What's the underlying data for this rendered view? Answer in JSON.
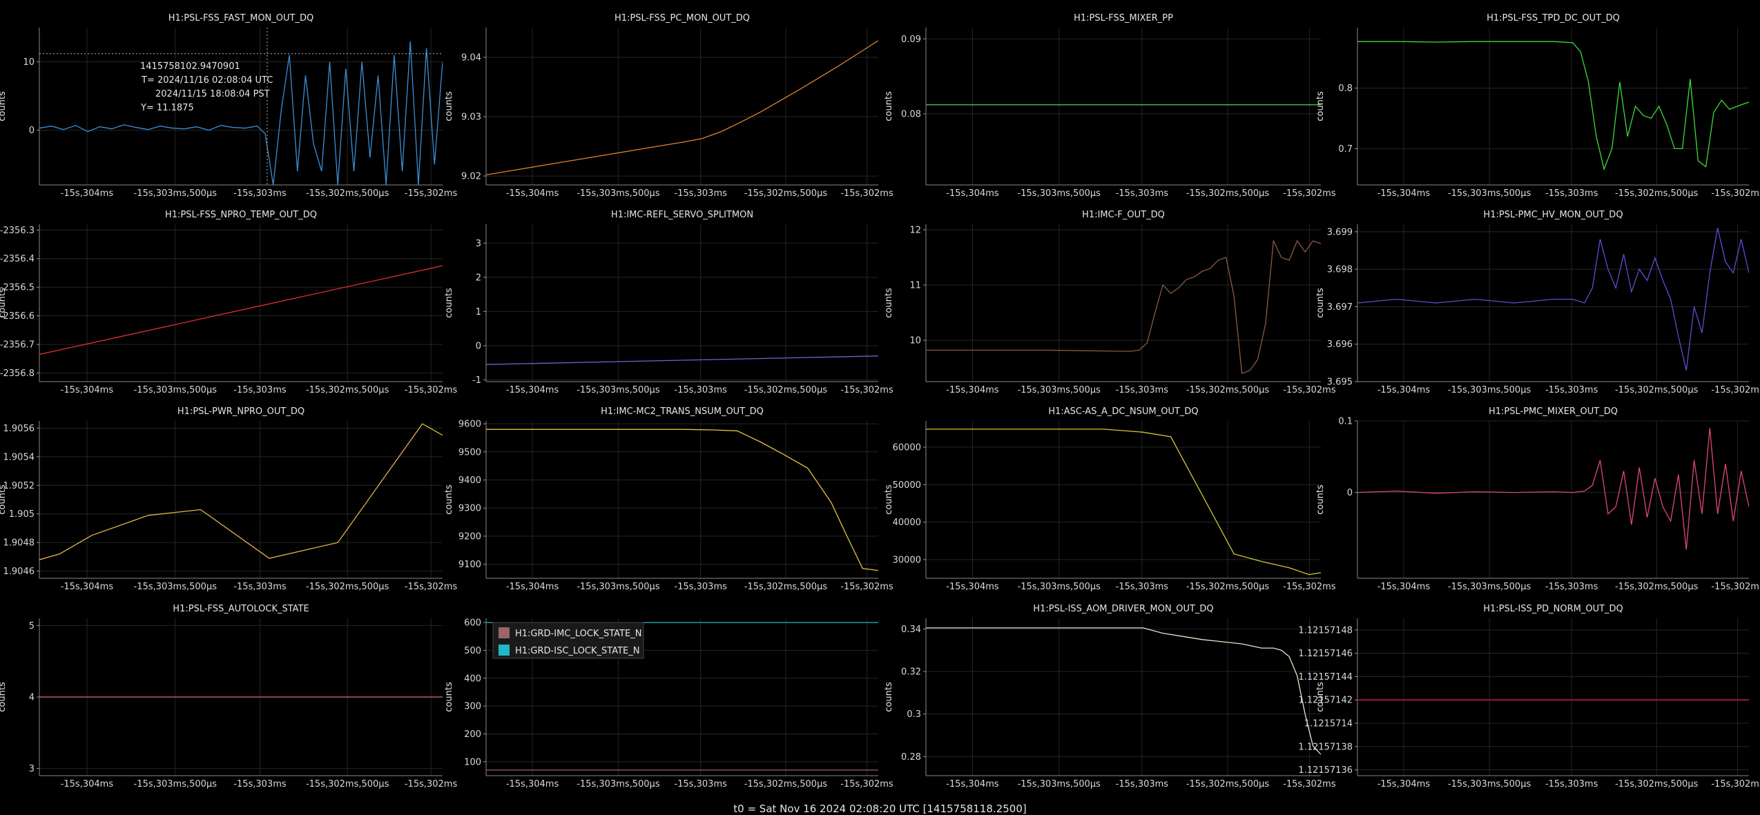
{
  "footer": "t0 = Sat Nov 16 2024 02:08:20 UTC [1415758118.2500]",
  "x_ticks": [
    "-15s,304ms",
    "-15s,303ms,500μs",
    "-15s,303ms",
    "-15s,302ms,500μs",
    "-15s,302ms"
  ],
  "chart_data": [
    {
      "type": "line",
      "title": "H1:PSL-FSS_FAST_MON_OUT_DQ",
      "ylabel": "counts",
      "color": "#3d8fd6",
      "ylim": [
        -8,
        15
      ],
      "yticks": [
        {
          "v": 0,
          "t": "0"
        },
        {
          "v": 10,
          "t": "10"
        }
      ],
      "xrange": [
        0,
        1
      ],
      "x": [
        0,
        0.03,
        0.06,
        0.09,
        0.12,
        0.15,
        0.18,
        0.21,
        0.24,
        0.27,
        0.3,
        0.33,
        0.36,
        0.39,
        0.42,
        0.45,
        0.48,
        0.51,
        0.54,
        0.56,
        0.58,
        0.6,
        0.62,
        0.64,
        0.66,
        0.68,
        0.7,
        0.72,
        0.74,
        0.76,
        0.78,
        0.8,
        0.82,
        0.84,
        0.86,
        0.88,
        0.9,
        0.92,
        0.94,
        0.96,
        0.98,
        1.0
      ],
      "values": [
        0.3,
        0.6,
        0.1,
        0.7,
        -0.2,
        0.5,
        0.2,
        0.8,
        0.4,
        0.1,
        0.6,
        0.3,
        0.2,
        0.5,
        0.0,
        0.7,
        0.4,
        0.3,
        0.6,
        -0.5,
        -8,
        3,
        11,
        -6,
        8,
        -2,
        -6,
        10,
        -8,
        9,
        -6,
        10,
        -4,
        8,
        -8,
        11,
        -6,
        13,
        -8,
        12,
        -5,
        10
      ],
      "crosshair": {
        "x": 0.565,
        "y": 11.1875
      },
      "tooltip": [
        "1415758102.9470901",
        "T= 2024/11/16 02:08:04 UTC",
        "2024/11/15 18:08:04 PST",
        "Y= 11.1875"
      ]
    },
    {
      "type": "line",
      "title": "H1:PSL-FSS_PC_MON_OUT_DQ",
      "ylabel": "counts",
      "color": "#e0832e",
      "ylim": [
        9.0185,
        9.045
      ],
      "yticks": [
        {
          "v": 9.02,
          "t": "9.02"
        },
        {
          "v": 9.03,
          "t": "9.03"
        },
        {
          "v": 9.04,
          "t": "9.04"
        }
      ],
      "xrange": [
        0,
        1
      ],
      "x": [
        0,
        0.1,
        0.2,
        0.3,
        0.4,
        0.5,
        0.55,
        0.6,
        0.65,
        0.7,
        0.75,
        0.8,
        0.85,
        0.9,
        0.95,
        1.0
      ],
      "values": [
        9.0202,
        9.0213,
        9.0224,
        9.0235,
        9.0246,
        9.0257,
        9.0263,
        9.0275,
        9.0291,
        9.0308,
        9.0327,
        9.0346,
        9.0366,
        9.0386,
        9.0407,
        9.0428
      ]
    },
    {
      "type": "line",
      "title": "H1:PSL-FSS_MIXER_PP",
      "ylabel": "counts",
      "color": "#4fbf4f",
      "ylim": [
        0.0705,
        0.0915
      ],
      "yticks": [
        {
          "v": 0.08,
          "t": "0.08"
        },
        {
          "v": 0.09,
          "t": "0.09"
        }
      ],
      "xrange": [
        0,
        1
      ],
      "x": [
        0,
        1
      ],
      "values": [
        0.0812,
        0.0812
      ]
    },
    {
      "type": "line",
      "title": "H1:PSL-FSS_TPD_DC_OUT_DQ",
      "ylabel": "counts",
      "color": "#3ddc3d",
      "ylim": [
        0.64,
        0.9
      ],
      "yticks": [
        {
          "v": 0.7,
          "t": "0.7"
        },
        {
          "v": 0.8,
          "t": "0.8"
        }
      ],
      "xrange": [
        0,
        1
      ],
      "x": [
        0,
        0.1,
        0.2,
        0.3,
        0.4,
        0.5,
        0.55,
        0.57,
        0.59,
        0.61,
        0.63,
        0.65,
        0.67,
        0.69,
        0.71,
        0.73,
        0.75,
        0.77,
        0.79,
        0.81,
        0.83,
        0.85,
        0.87,
        0.89,
        0.91,
        0.93,
        0.95,
        0.97,
        1.0
      ],
      "values": [
        0.877,
        0.877,
        0.876,
        0.877,
        0.877,
        0.877,
        0.875,
        0.86,
        0.81,
        0.72,
        0.666,
        0.7,
        0.81,
        0.72,
        0.77,
        0.755,
        0.75,
        0.77,
        0.74,
        0.7,
        0.7,
        0.815,
        0.68,
        0.67,
        0.76,
        0.78,
        0.765,
        0.77,
        0.777
      ]
    },
    {
      "type": "line",
      "title": "H1:PSL-FSS_NPRO_TEMP_OUT_DQ",
      "ylabel": "counts",
      "color": "#e03030",
      "ylim": [
        -2356.83,
        -2356.28
      ],
      "yticks": [
        {
          "v": -2356.8,
          "t": "-2356.8"
        },
        {
          "v": -2356.7,
          "t": "-2356.7"
        },
        {
          "v": -2356.6,
          "t": "-2356.6"
        },
        {
          "v": -2356.5,
          "t": "-2356.5"
        },
        {
          "v": -2356.4,
          "t": "-2356.4"
        },
        {
          "v": -2356.3,
          "t": "-2356.3"
        }
      ],
      "xrange": [
        0,
        1
      ],
      "x": [
        0,
        1
      ],
      "values": [
        -2356.735,
        -2356.425
      ]
    },
    {
      "type": "line",
      "title": "H1:IMC-REFL_SERVO_SPLITMON",
      "ylabel": "counts",
      "color": "#7a5fd1",
      "ylim": [
        -1.05,
        3.55
      ],
      "yticks": [
        {
          "v": -1,
          "t": "-1"
        },
        {
          "v": 0,
          "t": "0"
        },
        {
          "v": 1,
          "t": "1"
        },
        {
          "v": 2,
          "t": "2"
        },
        {
          "v": 3,
          "t": "3"
        }
      ],
      "xrange": [
        0,
        1
      ],
      "x": [
        0,
        1
      ],
      "values": [
        -0.55,
        -0.3
      ]
    },
    {
      "type": "line",
      "title": "H1:IMC-F_OUT_DQ",
      "ylabel": "counts",
      "color": "#8a5a44",
      "ylim": [
        9.25,
        12.1
      ],
      "yticks": [
        {
          "v": 10,
          "t": "10"
        },
        {
          "v": 11,
          "t": "11"
        },
        {
          "v": 12,
          "t": "12"
        }
      ],
      "xrange": [
        0,
        1
      ],
      "x": [
        0,
        0.3,
        0.5,
        0.52,
        0.54,
        0.56,
        0.58,
        0.6,
        0.62,
        0.64,
        0.66,
        0.68,
        0.7,
        0.72,
        0.74,
        0.76,
        0.78,
        0.8,
        0.82,
        0.84,
        0.86,
        0.88,
        0.9,
        0.92,
        0.94,
        0.96,
        0.98,
        1.0
      ],
      "values": [
        9.82,
        9.82,
        9.8,
        9.8,
        9.82,
        9.95,
        10.5,
        11,
        10.85,
        10.95,
        11.1,
        11.15,
        11.25,
        11.3,
        11.45,
        11.5,
        10.8,
        9.4,
        9.45,
        9.65,
        10.3,
        11.8,
        11.5,
        11.45,
        11.8,
        11.6,
        11.8,
        11.75
      ]
    },
    {
      "type": "line",
      "title": "H1:PSL-PMC_HV_MON_OUT_DQ",
      "ylabel": "counts",
      "color": "#5a4fd6",
      "ylim": [
        3.695,
        3.6992
      ],
      "yticks": [
        {
          "v": 3.695,
          "t": "3.695"
        },
        {
          "v": 3.696,
          "t": "3.696"
        },
        {
          "v": 3.697,
          "t": "3.697"
        },
        {
          "v": 3.698,
          "t": "3.698"
        },
        {
          "v": 3.699,
          "t": "3.699"
        }
      ],
      "xrange": [
        0,
        1
      ],
      "x": [
        0,
        0.1,
        0.2,
        0.3,
        0.4,
        0.5,
        0.55,
        0.58,
        0.6,
        0.62,
        0.64,
        0.66,
        0.68,
        0.7,
        0.72,
        0.74,
        0.76,
        0.78,
        0.8,
        0.82,
        0.84,
        0.86,
        0.88,
        0.9,
        0.92,
        0.94,
        0.96,
        0.98,
        1.0
      ],
      "values": [
        3.6971,
        3.6972,
        3.6971,
        3.6972,
        3.6971,
        3.6972,
        3.6972,
        3.6971,
        3.6975,
        3.6988,
        3.698,
        3.6975,
        3.6984,
        3.6974,
        3.698,
        3.6977,
        3.6983,
        3.6977,
        3.6972,
        3.6962,
        3.6953,
        3.697,
        3.6963,
        3.6979,
        3.6991,
        3.6982,
        3.6979,
        3.6988,
        3.6979
      ]
    },
    {
      "type": "line",
      "title": "H1:PSL-PWR_NPRO_OUT_DQ",
      "ylabel": "counts",
      "color": "#e8b64a",
      "ylim": [
        1.90455,
        1.90565
      ],
      "yticks": [
        {
          "v": 1.9046,
          "t": "1.9046"
        },
        {
          "v": 1.9048,
          "t": "1.9048"
        },
        {
          "v": 1.905,
          "t": "1.905"
        },
        {
          "v": 1.9052,
          "t": "1.9052"
        },
        {
          "v": 1.9054,
          "t": "1.9054"
        },
        {
          "v": 1.9056,
          "t": "1.9056"
        }
      ],
      "xrange": [
        0,
        1
      ],
      "x": [
        0,
        0.05,
        0.13,
        0.27,
        0.4,
        0.57,
        0.74,
        0.95,
        1.0
      ],
      "values": [
        1.90468,
        1.90472,
        1.90485,
        1.90499,
        1.90503,
        1.90469,
        1.9048,
        1.90563,
        1.90555
      ]
    },
    {
      "type": "line",
      "title": "H1:IMC-MC2_TRANS_NSUM_OUT_DQ",
      "ylabel": "counts",
      "color": "#e8c244",
      "ylim": [
        9050,
        9610
      ],
      "yticks": [
        {
          "v": 9100,
          "t": "9100"
        },
        {
          "v": 9200,
          "t": "9200"
        },
        {
          "v": 9300,
          "t": "9300"
        },
        {
          "v": 9400,
          "t": "9400"
        },
        {
          "v": 9500,
          "t": "9500"
        },
        {
          "v": 9600,
          "t": "9600"
        }
      ],
      "xrange": [
        0,
        1
      ],
      "x": [
        0,
        0.3,
        0.5,
        0.58,
        0.64,
        0.7,
        0.76,
        0.82,
        0.88,
        0.92,
        0.96,
        1.0
      ],
      "values": [
        9580,
        9580,
        9580,
        9578,
        9575,
        9535,
        9490,
        9442,
        9320,
        9200,
        9085,
        9078
      ]
    },
    {
      "type": "line",
      "title": "H1:ASC-AS_A_DC_NSUM_OUT_DQ",
      "ylabel": "counts",
      "color": "#d6c83a",
      "ylim": [
        25000,
        67000
      ],
      "yticks": [
        {
          "v": 30000,
          "t": "30000"
        },
        {
          "v": 40000,
          "t": "40000"
        },
        {
          "v": 50000,
          "t": "50000"
        },
        {
          "v": 60000,
          "t": "60000"
        }
      ],
      "xrange": [
        0,
        1
      ],
      "x": [
        0,
        0.3,
        0.45,
        0.55,
        0.62,
        0.78,
        0.85,
        0.92,
        0.97,
        1.0
      ],
      "values": [
        64800,
        64800,
        64800,
        64000,
        62800,
        31500,
        29500,
        27800,
        26000,
        26500
      ]
    },
    {
      "type": "line",
      "title": "H1:PSL-PMC_MIXER_OUT_DQ",
      "ylabel": "counts",
      "color": "#e04a70",
      "ylim": [
        -0.12,
        0.1
      ],
      "yticks": [
        {
          "v": 0,
          "t": "0"
        },
        {
          "v": 0.1,
          "t": "0.1"
        }
      ],
      "xrange": [
        0,
        1
      ],
      "x": [
        0,
        0.1,
        0.2,
        0.3,
        0.4,
        0.5,
        0.55,
        0.58,
        0.6,
        0.62,
        0.64,
        0.66,
        0.68,
        0.7,
        0.72,
        0.74,
        0.76,
        0.78,
        0.8,
        0.82,
        0.84,
        0.86,
        0.88,
        0.9,
        0.92,
        0.94,
        0.96,
        0.98,
        1.0
      ],
      "values": [
        0,
        0.002,
        -0.001,
        0.001,
        0,
        0.001,
        0,
        0.002,
        0.01,
        0.045,
        -0.03,
        -0.02,
        0.03,
        -0.045,
        0.035,
        -0.035,
        0.02,
        -0.02,
        -0.04,
        0.025,
        -0.08,
        0.045,
        -0.03,
        0.09,
        -0.03,
        0.04,
        -0.04,
        0.03,
        -0.02
      ]
    },
    {
      "type": "line",
      "title": "H1:PSL-FSS_AUTOLOCK_STATE",
      "ylabel": "counts",
      "color": "#d86a9a",
      "ylim": [
        2.9,
        5.1
      ],
      "yticks": [
        {
          "v": 3,
          "t": "3"
        },
        {
          "v": 4,
          "t": "4"
        },
        {
          "v": 5,
          "t": "5"
        }
      ],
      "xrange": [
        0,
        1
      ],
      "x": [
        0,
        1
      ],
      "values": [
        4,
        4
      ]
    },
    {
      "type": "line",
      "title": "",
      "ylabel": "counts",
      "ylim": [
        50,
        615
      ],
      "yticks": [
        {
          "v": 100,
          "t": "100"
        },
        {
          "v": 200,
          "t": "200"
        },
        {
          "v": 300,
          "t": "300"
        },
        {
          "v": 400,
          "t": "400"
        },
        {
          "v": 500,
          "t": "500"
        },
        {
          "v": 600,
          "t": "600"
        }
      ],
      "xrange": [
        0,
        1
      ],
      "series": [
        {
          "name": "H1:GRD-IMC_LOCK_STATE_N",
          "color": "#9a6468",
          "x": [
            0,
            1
          ],
          "values": [
            70,
            70
          ]
        },
        {
          "name": "H1:GRD-ISC_LOCK_STATE_N",
          "color": "#1fb7c9",
          "x": [
            0,
            1
          ],
          "values": [
            600,
            600
          ]
        }
      ]
    },
    {
      "type": "line",
      "title": "H1:PSL-ISS_AOM_DRIVER_MON_OUT_DQ",
      "ylabel": "counts",
      "color": "#e6e6cc",
      "ylim": [
        0.271,
        0.345
      ],
      "yticks": [
        {
          "v": 0.28,
          "t": "0.28"
        },
        {
          "v": 0.3,
          "t": "0.3"
        },
        {
          "v": 0.32,
          "t": "0.32"
        },
        {
          "v": 0.34,
          "t": "0.34"
        }
      ],
      "xrange": [
        0,
        1
      ],
      "x": [
        0,
        0.3,
        0.55,
        0.6,
        0.65,
        0.7,
        0.75,
        0.8,
        0.85,
        0.88,
        0.9,
        0.92,
        0.94,
        0.96,
        0.98,
        1.0
      ],
      "values": [
        0.3405,
        0.3405,
        0.3405,
        0.338,
        0.3365,
        0.335,
        0.334,
        0.333,
        0.331,
        0.331,
        0.33,
        0.327,
        0.318,
        0.3,
        0.285,
        0.281
      ]
    },
    {
      "type": "line",
      "title": "H1:PSL-ISS_PD_NORM_OUT_DQ",
      "ylabel": "counts",
      "color": "#e0204a",
      "ylim": [
        1.121571355,
        1.12157149
      ],
      "yticks": [
        {
          "v": 1.12157136,
          "t": "1.12157136"
        },
        {
          "v": 1.12157138,
          "t": "1.12157138"
        },
        {
          "v": 1.1215714,
          "t": "1.1215714"
        },
        {
          "v": 1.12157142,
          "t": "1.12157142"
        },
        {
          "v": 1.12157144,
          "t": "1.12157144"
        },
        {
          "v": 1.12157146,
          "t": "1.12157146"
        },
        {
          "v": 1.12157148,
          "t": "1.12157148"
        }
      ],
      "xrange": [
        0,
        1
      ],
      "x": [
        0,
        1
      ],
      "values": [
        1.12157142,
        1.12157142
      ]
    }
  ]
}
